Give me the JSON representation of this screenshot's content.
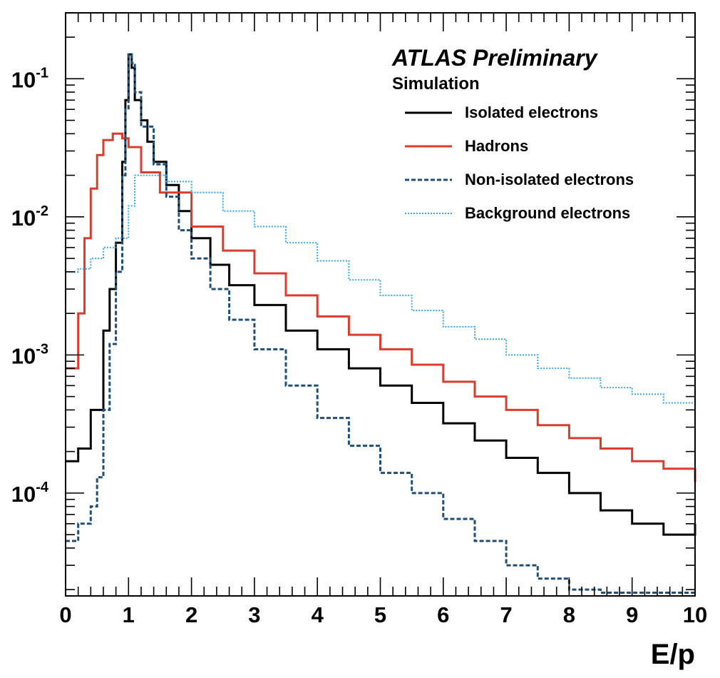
{
  "chart_data": {
    "type": "line",
    "xlabel": "E/p",
    "ylabel": "",
    "xlim": [
      0,
      10
    ],
    "ylim": [
      1.8e-05,
      0.3
    ],
    "yscale": "log",
    "grid": false,
    "legend_position": "top-right",
    "annotation": {
      "title": "ATLAS Preliminary",
      "subtitle": "Simulation"
    },
    "x_ticks": [
      {
        "value": 0,
        "label": "0"
      },
      {
        "value": 1,
        "label": "1"
      },
      {
        "value": 2,
        "label": "2"
      },
      {
        "value": 3,
        "label": "3"
      },
      {
        "value": 4,
        "label": "4"
      },
      {
        "value": 5,
        "label": "5"
      },
      {
        "value": 6,
        "label": "6"
      },
      {
        "value": 7,
        "label": "7"
      },
      {
        "value": 8,
        "label": "8"
      },
      {
        "value": 9,
        "label": "9"
      },
      {
        "value": 10,
        "label": "10"
      }
    ],
    "y_ticks": [
      {
        "value": 0.1,
        "base": "10",
        "exp": "-1"
      },
      {
        "value": 0.01,
        "base": "10",
        "exp": "-2"
      },
      {
        "value": 0.001,
        "base": "10",
        "exp": "-3"
      },
      {
        "value": 0.0001,
        "base": "10",
        "exp": "-4"
      }
    ],
    "series": [
      {
        "name": "Isolated electrons",
        "color": "#000000",
        "dash": "solid",
        "points": [
          [
            0,
            0.00017
          ],
          [
            0.2,
            0.00021
          ],
          [
            0.4,
            0.0004
          ],
          [
            0.6,
            0.0015
          ],
          [
            0.7,
            0.003
          ],
          [
            0.8,
            0.0065
          ],
          [
            0.9,
            0.025
          ],
          [
            0.95,
            0.07
          ],
          [
            1.0,
            0.15
          ],
          [
            1.05,
            0.12
          ],
          [
            1.1,
            0.07
          ],
          [
            1.2,
            0.05
          ],
          [
            1.3,
            0.035
          ],
          [
            1.4,
            0.025
          ],
          [
            1.6,
            0.017
          ],
          [
            1.8,
            0.011
          ],
          [
            2.0,
            0.007
          ],
          [
            2.3,
            0.0045
          ],
          [
            2.6,
            0.0032
          ],
          [
            3.0,
            0.0023
          ],
          [
            3.5,
            0.0015
          ],
          [
            4.0,
            0.0011
          ],
          [
            4.5,
            0.0008
          ],
          [
            5.0,
            0.0006
          ],
          [
            5.5,
            0.00045
          ],
          [
            6.0,
            0.00032
          ],
          [
            6.5,
            0.00024
          ],
          [
            7.0,
            0.00018
          ],
          [
            7.5,
            0.00014
          ],
          [
            8.0,
            0.0001
          ],
          [
            8.5,
            7.5e-05
          ],
          [
            9.0,
            6e-05
          ],
          [
            9.5,
            5e-05
          ],
          [
            10.0,
            6e-05
          ]
        ]
      },
      {
        "name": "Hadrons",
        "color": "#dc3c2e",
        "dash": "solid",
        "points": [
          [
            0,
            0.0008
          ],
          [
            0.1,
            0.0008
          ],
          [
            0.2,
            0.002
          ],
          [
            0.3,
            0.007
          ],
          [
            0.4,
            0.016
          ],
          [
            0.5,
            0.028
          ],
          [
            0.6,
            0.036
          ],
          [
            0.75,
            0.04
          ],
          [
            0.9,
            0.037
          ],
          [
            1.0,
            0.032
          ],
          [
            1.2,
            0.021
          ],
          [
            1.5,
            0.015
          ],
          [
            2.0,
            0.0085
          ],
          [
            2.5,
            0.0057
          ],
          [
            3.0,
            0.0039
          ],
          [
            3.5,
            0.0027
          ],
          [
            4.0,
            0.0019
          ],
          [
            4.5,
            0.0014
          ],
          [
            5.0,
            0.0011
          ],
          [
            5.5,
            0.00085
          ],
          [
            6.0,
            0.00064
          ],
          [
            6.5,
            0.0005
          ],
          [
            7.0,
            0.0004
          ],
          [
            7.5,
            0.00031
          ],
          [
            8.0,
            0.00025
          ],
          [
            8.5,
            0.00021
          ],
          [
            9.0,
            0.00017
          ],
          [
            9.5,
            0.00015
          ],
          [
            10.0,
            0.00012
          ]
        ]
      },
      {
        "name": "Non-isolated electrons",
        "color": "#1f4e79",
        "dash": "dashed",
        "points": [
          [
            0,
            4.5e-05
          ],
          [
            0.1,
            4.5e-05
          ],
          [
            0.2,
            6e-05
          ],
          [
            0.4,
            8e-05
          ],
          [
            0.5,
            0.00013
          ],
          [
            0.6,
            0.0004
          ],
          [
            0.7,
            0.0012
          ],
          [
            0.8,
            0.004
          ],
          [
            0.9,
            0.02
          ],
          [
            0.95,
            0.06
          ],
          [
            1.0,
            0.15
          ],
          [
            1.05,
            0.13
          ],
          [
            1.1,
            0.08
          ],
          [
            1.2,
            0.045
          ],
          [
            1.4,
            0.024
          ],
          [
            1.6,
            0.014
          ],
          [
            1.8,
            0.008
          ],
          [
            2.0,
            0.005
          ],
          [
            2.3,
            0.003
          ],
          [
            2.6,
            0.0018
          ],
          [
            3.0,
            0.0011
          ],
          [
            3.5,
            0.0006
          ],
          [
            4.0,
            0.00035
          ],
          [
            4.5,
            0.00022
          ],
          [
            5.0,
            0.00014
          ],
          [
            5.5,
            0.0001
          ],
          [
            6.0,
            6.5e-05
          ],
          [
            6.5,
            4.5e-05
          ],
          [
            7.0,
            3e-05
          ],
          [
            7.5,
            2.4e-05
          ],
          [
            8.0,
            2e-05
          ],
          [
            8.5,
            1.9e-05
          ],
          [
            9.0,
            1.9e-05
          ],
          [
            10.0,
            1.9e-05
          ]
        ]
      },
      {
        "name": "Background electrons",
        "color": "#3aa6e8",
        "dash": "dotted",
        "points": [
          [
            0,
            0.004
          ],
          [
            0.2,
            0.0042
          ],
          [
            0.4,
            0.005
          ],
          [
            0.6,
            0.006
          ],
          [
            0.8,
            0.007
          ],
          [
            1.0,
            0.012
          ],
          [
            1.1,
            0.02
          ],
          [
            1.3,
            0.02
          ],
          [
            1.6,
            0.018
          ],
          [
            2.0,
            0.015
          ],
          [
            2.5,
            0.011
          ],
          [
            3.0,
            0.0085
          ],
          [
            3.5,
            0.0065
          ],
          [
            4.0,
            0.0048
          ],
          [
            4.5,
            0.0035
          ],
          [
            5.0,
            0.0027
          ],
          [
            5.5,
            0.0021
          ],
          [
            6.0,
            0.0016
          ],
          [
            6.5,
            0.0013
          ],
          [
            7.0,
            0.001
          ],
          [
            7.5,
            0.0008
          ],
          [
            8.0,
            0.00068
          ],
          [
            8.5,
            0.00058
          ],
          [
            9.0,
            0.00052
          ],
          [
            9.5,
            0.00045
          ],
          [
            10.0,
            0.0004
          ]
        ]
      }
    ]
  }
}
